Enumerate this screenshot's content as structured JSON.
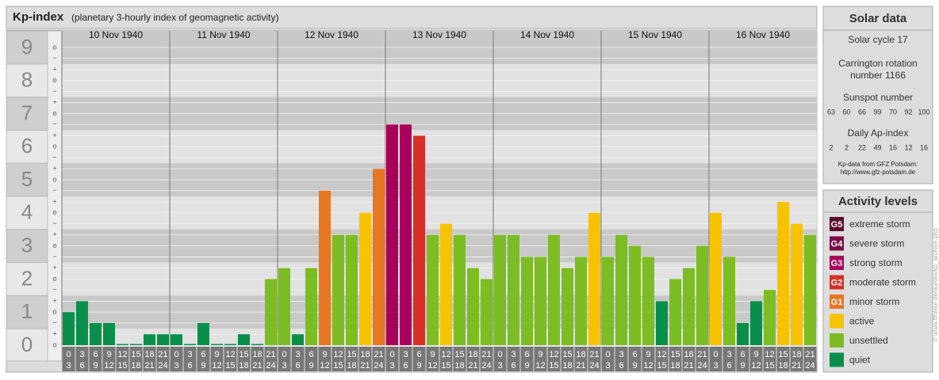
{
  "chart_data": {
    "type": "bar",
    "title": "Kp-index",
    "subtitle": "(planetary 3-hourly index of geomagnetic activity)",
    "days": [
      "10 Nov 1940",
      "11 Nov 1940",
      "12 Nov 1940",
      "13 Nov 1940",
      "14 Nov 1940",
      "15 Nov 1940",
      "16 Nov 1940"
    ],
    "slots": [
      {
        "from": "0",
        "to": "3"
      },
      {
        "from": "3",
        "to": "6"
      },
      {
        "from": "6",
        "to": "9"
      },
      {
        "from": "9",
        "to": "12"
      },
      {
        "from": "12",
        "to": "15"
      },
      {
        "from": "15",
        "to": "18"
      },
      {
        "from": "18",
        "to": "21"
      },
      {
        "from": "21",
        "to": "24"
      }
    ],
    "values": [
      1,
      1.33,
      0.67,
      0.67,
      0,
      0,
      0.33,
      0.33,
      0.33,
      0,
      0.67,
      0,
      0,
      0.33,
      0,
      2,
      2.33,
      0.33,
      2.33,
      4.67,
      3.33,
      3.33,
      4,
      5.33,
      6.67,
      6.67,
      6.33,
      3.33,
      3.67,
      3.33,
      2.33,
      2,
      3.33,
      3.33,
      2.67,
      2.67,
      3.33,
      2.33,
      2.67,
      4,
      2.67,
      3.33,
      3,
      2.67,
      1.33,
      2,
      2.33,
      3,
      4,
      2.67,
      0.67,
      1.33,
      1.67,
      4.33,
      3.67,
      3.33
    ],
    "colors": [
      "#0a8f4a",
      "#0a8f4a",
      "#0a8f4a",
      "#0a8f4a",
      "#0a8f4a",
      "#0a8f4a",
      "#0a8f4a",
      "#0a8f4a",
      "#0a8f4a",
      "#0a8f4a",
      "#0a8f4a",
      "#0a8f4a",
      "#0a8f4a",
      "#0a8f4a",
      "#0a8f4a",
      "#7cbd24",
      "#7cbd24",
      "#0a8f4a",
      "#7cbd24",
      "#e87722",
      "#7cbd24",
      "#7cbd24",
      "#f7c300",
      "#e87722",
      "#a8005a",
      "#a8005a",
      "#d73027",
      "#7cbd24",
      "#f7c300",
      "#7cbd24",
      "#7cbd24",
      "#7cbd24",
      "#7cbd24",
      "#7cbd24",
      "#7cbd24",
      "#7cbd24",
      "#7cbd24",
      "#7cbd24",
      "#7cbd24",
      "#f7c300",
      "#7cbd24",
      "#7cbd24",
      "#7cbd24",
      "#7cbd24",
      "#0a8f4a",
      "#7cbd24",
      "#7cbd24",
      "#7cbd24",
      "#f7c300",
      "#7cbd24",
      "#0a8f4a",
      "#0a8f4a",
      "#7cbd24",
      "#f7c300",
      "#f7c300",
      "#7cbd24"
    ],
    "ylim": [
      0,
      9.5
    ],
    "yticks": [
      0,
      1,
      2,
      3,
      4,
      5,
      6,
      7,
      8,
      9
    ],
    "minor_yticks": [
      {
        "value": 0,
        "label": "o"
      },
      {
        "value": 0.33,
        "label": "+"
      },
      {
        "value": 0.67,
        "label": "−"
      },
      {
        "value": 1,
        "label": "o"
      },
      {
        "value": 1.33,
        "label": "+"
      },
      {
        "value": 1.67,
        "label": "−"
      },
      {
        "value": 2,
        "label": "o"
      },
      {
        "value": 2.33,
        "label": "+"
      },
      {
        "value": 2.67,
        "label": "−"
      },
      {
        "value": 3,
        "label": "o"
      },
      {
        "value": 3.33,
        "label": "+"
      },
      {
        "value": 3.67,
        "label": "−"
      },
      {
        "value": 4,
        "label": "o"
      },
      {
        "value": 4.33,
        "label": "+"
      },
      {
        "value": 4.67,
        "label": "−"
      },
      {
        "value": 5,
        "label": "o"
      },
      {
        "value": 5.33,
        "label": "+"
      },
      {
        "value": 5.67,
        "label": "−"
      },
      {
        "value": 6,
        "label": "o"
      },
      {
        "value": 6.33,
        "label": "+"
      },
      {
        "value": 6.67,
        "label": "−"
      },
      {
        "value": 7,
        "label": "o"
      },
      {
        "value": 7.33,
        "label": "+"
      },
      {
        "value": 7.67,
        "label": "−"
      },
      {
        "value": 8,
        "label": "o"
      },
      {
        "value": 8.33,
        "label": "+"
      },
      {
        "value": 8.67,
        "label": "−"
      },
      {
        "value": 9,
        "label": "o"
      }
    ],
    "grid": true
  },
  "solar_data": {
    "title": "Solar data",
    "cycle": "Solar cycle 17",
    "carrington": [
      "Carrington rotation",
      "number 1166"
    ],
    "sunspot_title": "Sunspot number",
    "sunspot": [
      "63",
      "60",
      "66",
      "99",
      "70",
      "92",
      "100"
    ],
    "ap_title": "Daily Ap-index",
    "ap": [
      "2",
      "2",
      "22",
      "49",
      "16",
      "12",
      "16"
    ],
    "source": [
      "Kp-data from GFZ Potsdam:",
      "http://www.gfz-potsdam.de"
    ]
  },
  "activity_levels": {
    "title": "Activity levels",
    "items": [
      {
        "code": "G5",
        "name": "extreme storm",
        "color": "#5a0a2e"
      },
      {
        "code": "G4",
        "name": "severe storm",
        "color": "#7a0a48"
      },
      {
        "code": "G3",
        "name": "strong storm",
        "color": "#a8005a"
      },
      {
        "code": "G2",
        "name": "moderate storm",
        "color": "#d73027"
      },
      {
        "code": "G1",
        "name": "minor storm",
        "color": "#e87722"
      },
      {
        "name": "active",
        "color": "#f7c300"
      },
      {
        "name": "unsettled",
        "color": "#7cbd24"
      },
      {
        "name": "quiet",
        "color": "#0a8f4a"
      }
    ]
  },
  "watermark": "© www.tfheise.de/aurora/kp_archive.php"
}
